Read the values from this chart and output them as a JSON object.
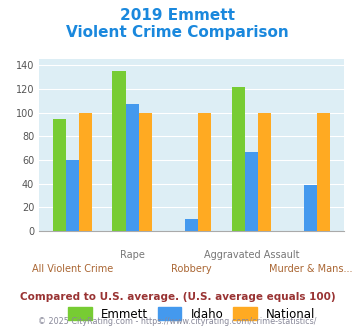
{
  "title_line1": "2019 Emmett",
  "title_line2": "Violent Crime Comparison",
  "categories": [
    "All Violent Crime",
    "Rape",
    "Robbery",
    "Aggravated Assault",
    "Murder & Mans..."
  ],
  "emmett": [
    95,
    135,
    0,
    122,
    0
  ],
  "idaho": [
    60,
    107,
    10,
    67,
    39
  ],
  "national": [
    100,
    100,
    100,
    100,
    100
  ],
  "color_emmett": "#77cc33",
  "color_idaho": "#4499ee",
  "color_national": "#ffaa22",
  "ylim": [
    0,
    145
  ],
  "yticks": [
    0,
    20,
    40,
    60,
    80,
    100,
    120,
    140
  ],
  "legend_labels": [
    "Emmett",
    "Idaho",
    "National"
  ],
  "top_xlabels": [
    "",
    "Rape",
    "",
    "Aggravated Assault",
    ""
  ],
  "bottom_xlabels": [
    "All Violent Crime",
    "",
    "Robbery",
    "",
    "Murder & Mans..."
  ],
  "footnote1": "Compared to U.S. average. (U.S. average equals 100)",
  "footnote2": "© 2025 CityRating.com - https://www.cityrating.com/crime-statistics/",
  "title_color": "#1a88dd",
  "top_xlabel_color": "#777777",
  "bot_xlabel_color": "#aa6633",
  "footnote1_color": "#993333",
  "footnote2_color": "#888899",
  "bg_color": "#ddeef5",
  "grid_color": "#ffffff"
}
